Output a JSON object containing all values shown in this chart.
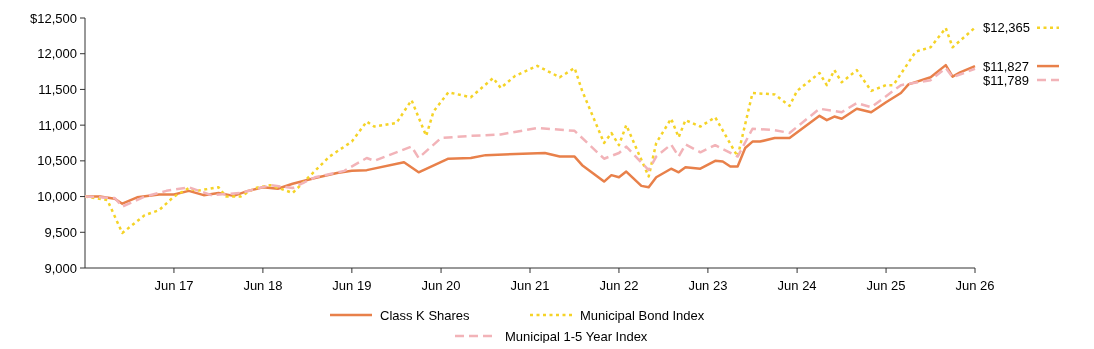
{
  "chart_data": {
    "type": "line",
    "legend": "bottom",
    "grid": false,
    "marker": "none",
    "xlim": [
      "2016-06",
      "2026-06"
    ],
    "xticks": [
      {
        "value": "2017-06",
        "label": "Jun 17"
      },
      {
        "value": "2018-06",
        "label": "Jun 18"
      },
      {
        "value": "2019-06",
        "label": "Jun 19"
      },
      {
        "value": "2020-06",
        "label": "Jun 20"
      },
      {
        "value": "2021-06",
        "label": "Jun 21"
      },
      {
        "value": "2022-06",
        "label": "Jun 22"
      },
      {
        "value": "2023-06",
        "label": "Jun 23"
      },
      {
        "value": "2024-06",
        "label": "Jun 24"
      },
      {
        "value": "2025-06",
        "label": "Jun 25"
      },
      {
        "value": "2026-06",
        "label": "Jun 26"
      }
    ],
    "ylim": [
      9000,
      12500
    ],
    "yticks": [
      {
        "value": 9000,
        "label": "9,000"
      },
      {
        "value": 9500,
        "label": "9,500"
      },
      {
        "value": 10000,
        "label": "10,000"
      },
      {
        "value": 10500,
        "label": "10,500"
      },
      {
        "value": 11000,
        "label": "11,000"
      },
      {
        "value": 11500,
        "label": "11,500"
      },
      {
        "value": 12000,
        "label": "12,000"
      },
      {
        "value": 12500,
        "label": "$12,500"
      }
    ],
    "series": [
      {
        "name": "Class K Shares",
        "color": "#e8804a",
        "line_style": "solid",
        "x": [
          "2016-06",
          "2016-08",
          "2016-10",
          "2016-11",
          "2017-01",
          "2017-04",
          "2017-06",
          "2017-08",
          "2017-10",
          "2017-12",
          "2018-02",
          "2018-04",
          "2018-06",
          "2018-08",
          "2018-10",
          "2019-01",
          "2019-04",
          "2019-06",
          "2019-08",
          "2020-01",
          "2020-03",
          "2020-07",
          "2020-10",
          "2020-12",
          "2021-08",
          "2021-10",
          "2021-12",
          "2022-01",
          "2022-04",
          "2022-05",
          "2022-06",
          "2022-07",
          "2022-09",
          "2022-10",
          "2022-11",
          "2023-01",
          "2023-02",
          "2023-03",
          "2023-05",
          "2023-07",
          "2023-08",
          "2023-09",
          "2023-10",
          "2023-11",
          "2023-12",
          "2024-01",
          "2024-03",
          "2024-05",
          "2024-09",
          "2024-10",
          "2024-11",
          "2024-12",
          "2025-02",
          "2025-04",
          "2025-06",
          "2025-08",
          "2025-09",
          "2025-12",
          "2026-02",
          "2026-03",
          "2026-04",
          "2026-06"
        ],
        "values": [
          10000,
          10000,
          9970,
          9900,
          9990,
          10030,
          10030,
          10080,
          10020,
          10050,
          10010,
          10080,
          10130,
          10110,
          10180,
          10260,
          10330,
          10360,
          10370,
          10480,
          10340,
          10530,
          10540,
          10580,
          10610,
          10560,
          10560,
          10440,
          10210,
          10300,
          10270,
          10350,
          10150,
          10130,
          10270,
          10390,
          10340,
          10410,
          10390,
          10500,
          10490,
          10420,
          10420,
          10680,
          10770,
          10770,
          10820,
          10820,
          11130,
          11070,
          11120,
          11090,
          11230,
          11180,
          11320,
          11450,
          11570,
          11670,
          11840,
          11680,
          11740,
          11827
        ]
      },
      {
        "name": "Municipal Bond Index",
        "color": "#f5d327",
        "line_style": "dotted",
        "x": [
          "2016-06",
          "2016-09",
          "2016-11",
          "2017-02",
          "2017-04",
          "2017-06",
          "2017-08",
          "2017-09",
          "2017-12",
          "2018-01",
          "2018-03",
          "2018-05",
          "2018-07",
          "2018-10",
          "2019-03",
          "2019-06",
          "2019-08",
          "2019-09",
          "2019-12",
          "2020-02",
          "2020-04",
          "2020-05",
          "2020-07",
          "2020-10",
          "2021-01",
          "2021-02",
          "2021-04",
          "2021-07",
          "2021-10",
          "2021-12",
          "2022-01",
          "2022-04",
          "2022-05",
          "2022-06",
          "2022-07",
          "2022-10",
          "2022-11",
          "2023-01",
          "2023-02",
          "2023-03",
          "2023-05",
          "2023-07",
          "2023-10",
          "2023-12",
          "2024-03",
          "2024-05",
          "2024-06",
          "2024-09",
          "2024-10",
          "2024-11",
          "2024-12",
          "2025-02",
          "2025-04",
          "2025-06",
          "2025-07",
          "2025-10",
          "2025-12",
          "2026-02",
          "2026-03",
          "2026-06"
        ],
        "values": [
          10000,
          9950,
          9490,
          9740,
          9810,
          10000,
          10120,
          10080,
          10130,
          10000,
          10000,
          10120,
          10160,
          10050,
          10560,
          10770,
          11050,
          10980,
          11030,
          11350,
          10850,
          11190,
          11460,
          11390,
          11660,
          11520,
          11690,
          11830,
          11670,
          11800,
          11480,
          10750,
          10890,
          10720,
          11000,
          10280,
          10750,
          11090,
          10830,
          11070,
          10980,
          11110,
          10560,
          11450,
          11430,
          11270,
          11480,
          11730,
          11560,
          11770,
          11600,
          11770,
          11480,
          11560,
          11560,
          12030,
          12090,
          12360,
          12090,
          12365
        ]
      },
      {
        "name": "Municipal 1-5 Year Index",
        "color": "#f2b3b8",
        "line_style": "dashed",
        "x": [
          "2016-06",
          "2016-10",
          "2016-11",
          "2017-02",
          "2017-05",
          "2017-08",
          "2017-11",
          "2018-03",
          "2018-07",
          "2018-10",
          "2019-01",
          "2019-05",
          "2019-08",
          "2019-09",
          "2019-11",
          "2020-02",
          "2020-03",
          "2020-06",
          "2020-10",
          "2021-02",
          "2021-07",
          "2021-12",
          "2022-02",
          "2022-04",
          "2022-06",
          "2022-07",
          "2022-10",
          "2022-11",
          "2023-01",
          "2023-02",
          "2023-03",
          "2023-05",
          "2023-07",
          "2023-10",
          "2023-12",
          "2024-03",
          "2024-05",
          "2024-09",
          "2024-12",
          "2025-02",
          "2025-04",
          "2025-08",
          "2025-12",
          "2026-02",
          "2026-03",
          "2026-06"
        ],
        "values": [
          10000,
          9980,
          9860,
          10000,
          10080,
          10130,
          10020,
          10050,
          10160,
          10120,
          10270,
          10360,
          10540,
          10500,
          10580,
          10700,
          10540,
          10820,
          10850,
          10870,
          10960,
          10920,
          10720,
          10530,
          10610,
          10700,
          10370,
          10560,
          10730,
          10560,
          10730,
          10620,
          10720,
          10560,
          10950,
          10930,
          10890,
          11230,
          11180,
          11310,
          11250,
          11560,
          11630,
          11800,
          11670,
          11789
        ]
      }
    ],
    "annotations": [
      {
        "text": "$12,365",
        "x": "2026-06",
        "y": 12365
      },
      {
        "text": "$11,827",
        "x": "2026-06",
        "y": 11827
      },
      {
        "text": "$11,789",
        "x": "2026-06",
        "y": 11789
      }
    ]
  }
}
